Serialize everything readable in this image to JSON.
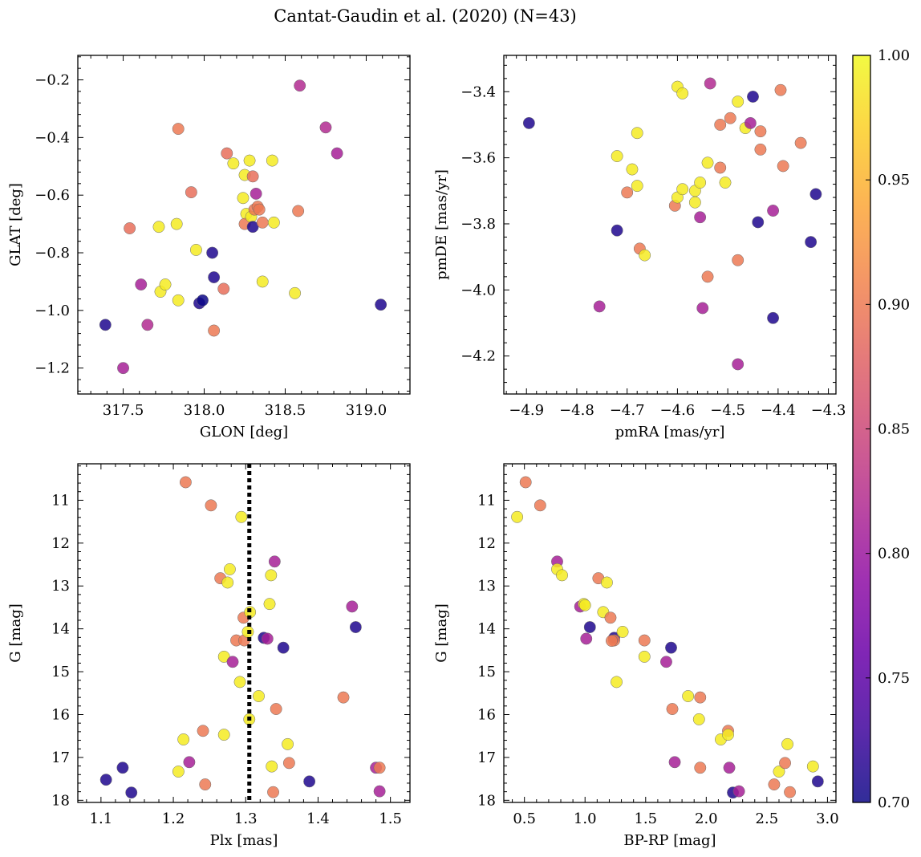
{
  "title": "Cantat-Gaudin et al. (2020) (N=43)",
  "colormap": {
    "name": "plasma",
    "range": [
      0.7,
      1.0
    ],
    "ticks": [
      0.7,
      0.75,
      0.8,
      0.85,
      0.9,
      0.95,
      1.0
    ],
    "tick_labels": [
      "0.70",
      "0.75",
      "0.80",
      "0.85",
      "0.90",
      "0.95",
      "1.00"
    ]
  },
  "chart_data": [
    {
      "type": "scatter",
      "id": "glon-glat",
      "xlabel": "GLON [deg]",
      "ylabel": "GLAT [deg]",
      "xlim": [
        317.22,
        319.27
      ],
      "ylim": [
        -1.29,
        -0.115
      ],
      "y_inverted": false,
      "xticks": [
        317.5,
        318.0,
        318.5,
        319.0
      ],
      "xticklabels": [
        "317.5",
        "318.0",
        "318.5",
        "319.0"
      ],
      "yticks": [
        -1.2,
        -1.0,
        -0.8,
        -0.6,
        -0.4,
        -0.2
      ],
      "yticklabels": [
        "−1.2",
        "−1.0",
        "−0.8",
        "−0.6",
        "−0.4",
        "−0.2"
      ],
      "points": [
        [
          317.39,
          -1.05,
          0.71
        ],
        [
          317.5,
          -1.2,
          0.81
        ],
        [
          317.54,
          -0.715,
          0.89
        ],
        [
          317.61,
          -0.91,
          0.81
        ],
        [
          317.65,
          -1.05,
          0.82
        ],
        [
          317.72,
          -0.71,
          0.99
        ],
        [
          317.73,
          -0.935,
          0.99
        ],
        [
          317.76,
          -0.91,
          0.99
        ],
        [
          317.83,
          -0.7,
          0.99
        ],
        [
          317.84,
          -0.37,
          0.9
        ],
        [
          317.84,
          -0.965,
          0.99
        ],
        [
          317.92,
          -0.59,
          0.89
        ],
        [
          317.95,
          -0.79,
          0.99
        ],
        [
          317.97,
          -0.975,
          0.71
        ],
        [
          317.99,
          -0.965,
          0.7
        ],
        [
          318.05,
          -0.8,
          0.71
        ],
        [
          318.06,
          -0.885,
          0.71
        ],
        [
          318.06,
          -1.07,
          0.9
        ],
        [
          318.12,
          -0.925,
          0.89
        ],
        [
          318.14,
          -0.455,
          0.89
        ],
        [
          318.18,
          -0.49,
          0.99
        ],
        [
          318.24,
          -0.61,
          0.99
        ],
        [
          318.25,
          -0.53,
          0.99
        ],
        [
          318.26,
          -0.665,
          0.99
        ],
        [
          318.25,
          -0.7,
          0.9
        ],
        [
          318.28,
          -0.48,
          0.99
        ],
        [
          318.29,
          -0.675,
          0.99
        ],
        [
          318.3,
          -0.535,
          0.89
        ],
        [
          318.3,
          -0.71,
          0.71
        ],
        [
          318.31,
          -0.65,
          0.9
        ],
        [
          318.32,
          -0.595,
          0.81
        ],
        [
          318.33,
          -0.64,
          0.9
        ],
        [
          318.34,
          -0.65,
          0.9
        ],
        [
          318.36,
          -0.695,
          0.9
        ],
        [
          318.36,
          -0.9,
          0.99
        ],
        [
          318.42,
          -0.48,
          0.99
        ],
        [
          318.43,
          -0.695,
          0.99
        ],
        [
          318.56,
          -0.94,
          0.99
        ],
        [
          318.58,
          -0.655,
          0.9
        ],
        [
          318.59,
          -0.22,
          0.82
        ],
        [
          318.75,
          -0.365,
          0.82
        ],
        [
          318.82,
          -0.455,
          0.81
        ],
        [
          319.09,
          -0.98,
          0.71
        ]
      ]
    },
    {
      "type": "scatter",
      "id": "pmra-pmde",
      "xlabel": "pmRA [mas/yr]",
      "ylabel": "pmDE [mas/yr]",
      "xlim": [
        -4.945,
        -4.285
      ],
      "ylim": [
        -4.315,
        -3.29
      ],
      "y_inverted": false,
      "xticks": [
        -4.9,
        -4.8,
        -4.7,
        -4.6,
        -4.5,
        -4.4,
        -4.3
      ],
      "xticklabels": [
        "−4.9",
        "−4.8",
        "−4.7",
        "−4.6",
        "−4.5",
        "−4.4",
        "−4.3"
      ],
      "yticks": [
        -4.2,
        -4.0,
        -3.8,
        -3.6,
        -3.4
      ],
      "yticklabels": [
        "−4.2",
        "−4.0",
        "−3.8",
        "−3.6",
        "−3.4"
      ],
      "points": [
        [
          -4.895,
          -3.495,
          0.71
        ],
        [
          -4.755,
          -4.05,
          0.81
        ],
        [
          -4.72,
          -3.595,
          0.99
        ],
        [
          -4.72,
          -3.82,
          0.71
        ],
        [
          -4.7,
          -3.705,
          0.9
        ],
        [
          -4.69,
          -3.635,
          0.99
        ],
        [
          -4.68,
          -3.525,
          0.99
        ],
        [
          -4.68,
          -3.685,
          0.99
        ],
        [
          -4.675,
          -3.875,
          0.9
        ],
        [
          -4.665,
          -3.895,
          0.99
        ],
        [
          -4.605,
          -3.745,
          0.9
        ],
        [
          -4.6,
          -3.385,
          0.99
        ],
        [
          -4.6,
          -3.72,
          0.99
        ],
        [
          -4.59,
          -3.405,
          0.99
        ],
        [
          -4.59,
          -3.695,
          0.99
        ],
        [
          -4.565,
          -3.7,
          0.99
        ],
        [
          -4.565,
          -3.735,
          0.99
        ],
        [
          -4.555,
          -3.675,
          0.99
        ],
        [
          -4.555,
          -3.78,
          0.81
        ],
        [
          -4.55,
          -4.055,
          0.81
        ],
        [
          -4.54,
          -3.615,
          0.99
        ],
        [
          -4.54,
          -3.96,
          0.9
        ],
        [
          -4.535,
          -3.375,
          0.82
        ],
        [
          -4.515,
          -3.5,
          0.9
        ],
        [
          -4.515,
          -3.63,
          0.9
        ],
        [
          -4.505,
          -3.675,
          0.99
        ],
        [
          -4.495,
          -3.48,
          0.9
        ],
        [
          -4.48,
          -3.43,
          0.99
        ],
        [
          -4.48,
          -3.91,
          0.9
        ],
        [
          -4.48,
          -4.225,
          0.81
        ],
        [
          -4.465,
          -3.51,
          0.99
        ],
        [
          -4.455,
          -3.495,
          0.81
        ],
        [
          -4.45,
          -3.415,
          0.71
        ],
        [
          -4.44,
          -3.795,
          0.71
        ],
        [
          -4.435,
          -3.52,
          0.9
        ],
        [
          -4.435,
          -3.575,
          0.9
        ],
        [
          -4.41,
          -3.76,
          0.81
        ],
        [
          -4.41,
          -4.085,
          0.71
        ],
        [
          -4.395,
          -3.395,
          0.9
        ],
        [
          -4.39,
          -3.625,
          0.9
        ],
        [
          -4.355,
          -3.555,
          0.9
        ],
        [
          -4.335,
          -3.855,
          0.71
        ],
        [
          -4.325,
          -3.71,
          0.71
        ]
      ]
    },
    {
      "type": "scatter",
      "id": "plx-g",
      "xlabel": "Plx [mas]",
      "ylabel": "G [mag]",
      "xlim": [
        1.068,
        1.527
      ],
      "ylim": [
        10.15,
        18.05
      ],
      "y_inverted": true,
      "xticks": [
        1.1,
        1.2,
        1.3,
        1.4,
        1.5
      ],
      "xticklabels": [
        "1.1",
        "1.2",
        "1.3",
        "1.4",
        "1.5"
      ],
      "yticks": [
        11,
        12,
        13,
        14,
        15,
        16,
        17,
        18
      ],
      "yticklabels": [
        "11",
        "12",
        "13",
        "14",
        "15",
        "16",
        "17",
        "18"
      ],
      "vline": {
        "x": 1.305,
        "style": "dotted"
      },
      "points": [
        [
          1.107,
          17.52,
          0.71
        ],
        [
          1.13,
          17.24,
          0.71
        ],
        [
          1.142,
          17.82,
          0.71
        ],
        [
          1.207,
          17.33,
          0.99
        ],
        [
          1.214,
          16.58,
          0.99
        ],
        [
          1.217,
          10.58,
          0.9
        ],
        [
          1.222,
          17.11,
          0.81
        ],
        [
          1.241,
          16.38,
          0.9
        ],
        [
          1.244,
          17.63,
          0.9
        ],
        [
          1.252,
          11.12,
          0.9
        ],
        [
          1.265,
          12.82,
          0.9
        ],
        [
          1.27,
          14.65,
          0.99
        ],
        [
          1.27,
          16.47,
          0.99
        ],
        [
          1.275,
          12.92,
          0.99
        ],
        [
          1.278,
          12.61,
          0.99
        ],
        [
          1.282,
          14.77,
          0.81
        ],
        [
          1.287,
          14.27,
          0.9
        ],
        [
          1.292,
          15.24,
          0.99
        ],
        [
          1.294,
          11.39,
          0.99
        ],
        [
          1.297,
          13.74,
          0.9
        ],
        [
          1.298,
          14.27,
          0.9
        ],
        [
          1.303,
          14.07,
          0.99
        ],
        [
          1.305,
          16.11,
          0.99
        ],
        [
          1.306,
          13.61,
          0.99
        ],
        [
          1.318,
          15.57,
          0.99
        ],
        [
          1.325,
          14.21,
          0.71
        ],
        [
          1.33,
          14.23,
          0.81
        ],
        [
          1.333,
          13.42,
          0.99
        ],
        [
          1.335,
          12.75,
          0.99
        ],
        [
          1.336,
          17.21,
          0.99
        ],
        [
          1.338,
          17.81,
          0.9
        ],
        [
          1.34,
          12.43,
          0.81
        ],
        [
          1.342,
          15.87,
          0.9
        ],
        [
          1.352,
          14.44,
          0.71
        ],
        [
          1.358,
          16.69,
          0.99
        ],
        [
          1.36,
          17.13,
          0.9
        ],
        [
          1.388,
          17.56,
          0.71
        ],
        [
          1.435,
          15.6,
          0.9
        ],
        [
          1.447,
          13.48,
          0.81
        ],
        [
          1.452,
          13.96,
          0.71
        ],
        [
          1.48,
          17.24,
          0.81
        ],
        [
          1.485,
          17.24,
          0.9
        ],
        [
          1.485,
          17.79,
          0.81
        ]
      ]
    },
    {
      "type": "scatter",
      "id": "bprp-g",
      "xlabel": "BP-RP [mag]",
      "ylabel": "G [mag]",
      "xlim": [
        0.33,
        3.07
      ],
      "ylim": [
        10.15,
        18.05
      ],
      "y_inverted": true,
      "xticks": [
        0.5,
        1.0,
        1.5,
        2.0,
        2.5,
        3.0
      ],
      "xticklabels": [
        "0.5",
        "1.0",
        "1.5",
        "2.0",
        "2.5",
        "3.0"
      ],
      "yticks": [
        11,
        12,
        13,
        14,
        15,
        16,
        17,
        18
      ],
      "yticklabels": [
        "11",
        "12",
        "13",
        "14",
        "15",
        "16",
        "17",
        "18"
      ],
      "points": [
        [
          0.44,
          11.39,
          0.99
        ],
        [
          0.51,
          10.58,
          0.9
        ],
        [
          0.63,
          11.12,
          0.9
        ],
        [
          0.77,
          12.43,
          0.81
        ],
        [
          0.77,
          12.61,
          0.99
        ],
        [
          0.81,
          12.75,
          0.99
        ],
        [
          0.96,
          13.48,
          0.81
        ],
        [
          0.99,
          13.42,
          0.99
        ],
        [
          1.01,
          14.23,
          0.81
        ],
        [
          1.04,
          13.96,
          0.71
        ],
        [
          1.11,
          12.82,
          0.9
        ],
        [
          1.15,
          13.61,
          0.99
        ],
        [
          1.18,
          12.92,
          0.99
        ],
        [
          1.21,
          13.74,
          0.9
        ],
        [
          1.24,
          14.21,
          0.71
        ],
        [
          1.24,
          14.27,
          0.9
        ],
        [
          1.26,
          15.24,
          0.99
        ],
        [
          1.31,
          14.07,
          0.99
        ],
        [
          1.49,
          14.27,
          0.9
        ],
        [
          1.49,
          14.65,
          0.99
        ],
        [
          1.67,
          14.77,
          0.81
        ],
        [
          1.71,
          14.44,
          0.71
        ],
        [
          1.72,
          15.87,
          0.9
        ],
        [
          1.74,
          17.11,
          0.81
        ],
        [
          1.85,
          15.57,
          0.99
        ],
        [
          1.94,
          16.11,
          0.99
        ],
        [
          1.95,
          15.6,
          0.9
        ],
        [
          1.95,
          17.24,
          0.9
        ],
        [
          2.12,
          16.58,
          0.99
        ],
        [
          2.18,
          16.38,
          0.9
        ],
        [
          2.18,
          16.47,
          0.99
        ],
        [
          2.19,
          17.24,
          0.81
        ],
        [
          2.22,
          17.82,
          0.71
        ],
        [
          2.27,
          17.79,
          0.81
        ],
        [
          2.56,
          17.63,
          0.9
        ],
        [
          2.6,
          17.33,
          0.99
        ],
        [
          2.65,
          17.13,
          0.9
        ],
        [
          2.67,
          16.69,
          0.99
        ],
        [
          2.69,
          17.81,
          0.9
        ],
        [
          2.88,
          17.21,
          0.99
        ],
        [
          2.92,
          17.56,
          0.71
        ],
        [
          1.22,
          14.28,
          0.9
        ],
        [
          1.0,
          13.45,
          0.99
        ]
      ]
    }
  ]
}
